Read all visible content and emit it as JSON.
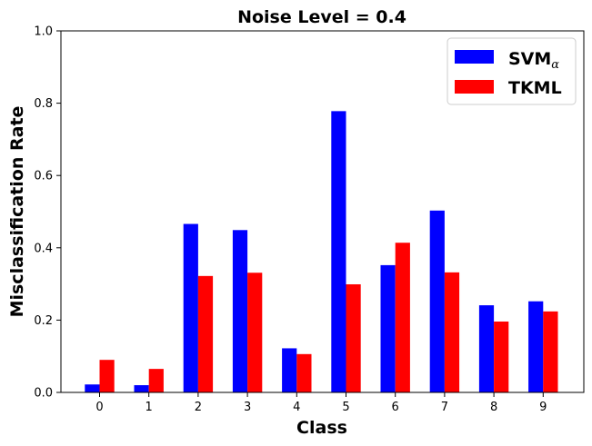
{
  "chart_data": {
    "type": "bar",
    "title": "Noise Level = 0.4",
    "xlabel": "Class",
    "ylabel": "Misclassification Rate",
    "categories": [
      "0",
      "1",
      "2",
      "3",
      "4",
      "5",
      "6",
      "7",
      "8",
      "9"
    ],
    "series": [
      {
        "name": "SVM",
        "name_subscript": "α",
        "color": "#0000ff",
        "values": [
          0.022,
          0.02,
          0.466,
          0.449,
          0.122,
          0.778,
          0.352,
          0.503,
          0.241,
          0.252
        ]
      },
      {
        "name": "TKML",
        "color": "#ff0000",
        "values": [
          0.09,
          0.065,
          0.322,
          0.331,
          0.106,
          0.299,
          0.414,
          0.332,
          0.196,
          0.224
        ]
      }
    ],
    "ylim": [
      0,
      1.0
    ],
    "yticks": [
      "0.0",
      "0.2",
      "0.4",
      "0.6",
      "0.8",
      "1.0"
    ],
    "grid": false,
    "legend_position": "top-right"
  }
}
